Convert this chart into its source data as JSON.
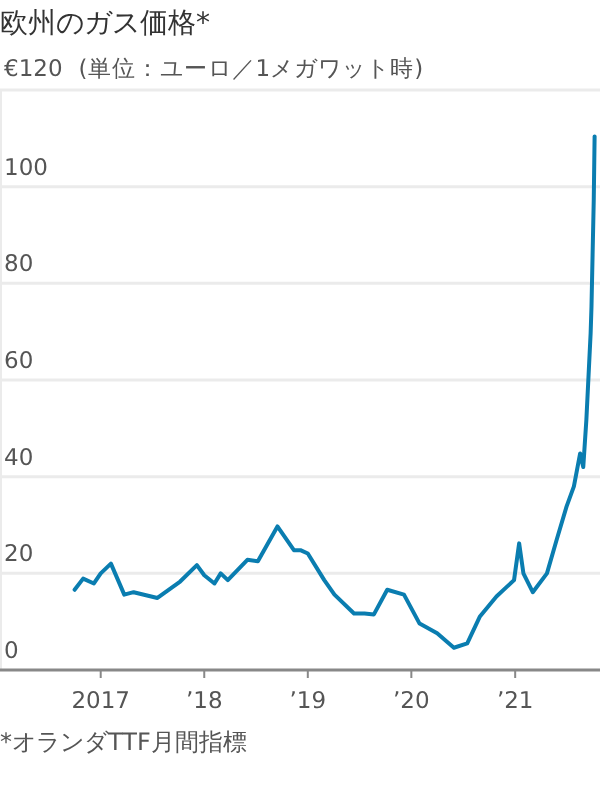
{
  "chart_data": {
    "type": "line",
    "title": "欧州のガス価格*",
    "ylabel": "(単位：ユーロ／1メガワット時)",
    "annotations": [
      "*オランダTTF月間指標"
    ],
    "x": [
      "2016-10-01",
      "2016-10-31",
      "2016-12-08",
      "2017-01-01",
      "2017-02-06",
      "2017-03-25",
      "2017-04-27",
      "2017-07-20",
      "2017-10-08",
      "2017-12-06",
      "2018-01-01",
      "2018-02-06",
      "2018-02-28",
      "2018-03-25",
      "2018-06-02",
      "2018-07-09",
      "2018-09-16",
      "2018-11-13",
      "2018-12-06",
      "2019-01-01",
      "2019-02-28",
      "2019-04-05",
      "2019-06-13",
      "2019-07-20",
      "2019-08-22",
      "2019-10-08",
      "2019-12-06",
      "2020-01-30",
      "2020-04-01",
      "2020-05-30",
      "2020-07-16",
      "2020-08-29",
      "2020-10-27",
      "2020-12-28",
      "2021-01-15",
      "2021-01-30",
      "2021-03-04",
      "2021-04-23",
      "2021-05-27",
      "2021-07-01",
      "2021-07-27",
      "2021-08-18",
      "2021-08-29",
      "2021-09-09",
      "2021-09-24",
      "2021-09-27",
      "2021-10-05",
      "2021-10-08"
    ],
    "series": [
      {
        "color": "#0a7db0",
        "values": [
          16.6,
          18.9,
          17.9,
          20,
          22,
          15.6,
          16.1,
          14.9,
          18.3,
          21.7,
          19.6,
          17.9,
          20,
          18.6,
          22.8,
          22.5,
          29.7,
          24.8,
          24.8,
          24.1,
          18.6,
          15.6,
          11.7,
          11.7,
          11.5,
          16.6,
          15.6,
          9.6,
          7.6,
          4.6,
          5.5,
          11,
          15.2,
          18.6,
          26.2,
          20,
          16.1,
          20,
          26.9,
          33.8,
          38,
          44.8,
          42,
          51.8,
          69.7,
          75.2,
          97.3,
          110.4
        ]
      }
    ],
    "xlim": [
      "2016-01-12",
      "2021-10-27"
    ],
    "xticks": [
      {
        "value": "2017-01-01",
        "label": "2017"
      },
      {
        "value": "2018-01-01",
        "label": "’18"
      },
      {
        "value": "2019-01-01",
        "label": "’19"
      },
      {
        "value": "2020-01-01",
        "label": "’20"
      },
      {
        "value": "2021-01-01",
        "label": "’21"
      }
    ],
    "ylim": [
      0,
      120
    ],
    "yticks": [
      0,
      20,
      40,
      60,
      80,
      100,
      {
        "value": 120,
        "label": "€120"
      }
    ],
    "grid": "y",
    "marker": "none",
    "line_style": "solid"
  }
}
